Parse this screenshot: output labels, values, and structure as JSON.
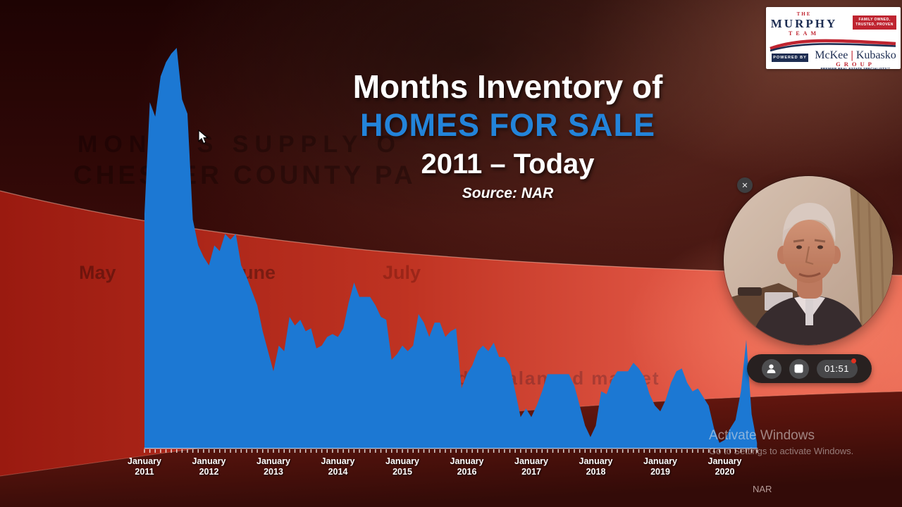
{
  "slide": {
    "title_line1": "Months Inventory of",
    "title_line2": "HOMES FOR SALE",
    "title_line3": "2011 – Today",
    "source_label": "Source: NAR",
    "footer_source": "NAR"
  },
  "ghost": {
    "headline_line1": "MONTHS SUPPLY O",
    "headline_line2": "CHESTER COUNTY  PA",
    "month_may": "May",
    "month_june": "June",
    "month_july": "July",
    "note": "NOTE: ~ 6 Months is considered a balanced market"
  },
  "logo": {
    "the": "THE",
    "murphy": "MURPHY",
    "team": "TEAM",
    "badge_line1": "FAMILY OWNED,",
    "badge_line2": "TRUSTED, PROVEN",
    "powered_by": "POWERED BY",
    "name_first": "McKee",
    "name_divider": "|",
    "name_last": "Kubasko",
    "group": "GROUP",
    "tagline": "PREMIER REAL ESTATE SPECIALISTS™"
  },
  "webcam": {
    "close_label": "✕"
  },
  "recorder": {
    "timer": "01:51"
  },
  "watermark": {
    "line1": "Activate Windows",
    "line2": "Go to Settings to activate Windows."
  },
  "colors": {
    "chart_blue": "#1c78d3",
    "title_blue": "#2384da",
    "logo_navy": "#1d2d52",
    "logo_red": "#bf2430",
    "band_red": "#c23524"
  },
  "chart_data": {
    "type": "area",
    "title": "Months Inventory of Homes for Sale, 2011 – Today",
    "source": "NAR",
    "unit": "months of supply",
    "ylim": [
      0,
      14
    ],
    "grid": false,
    "legend": false,
    "x_tick_interval": "monthly",
    "series_start": "January 2011",
    "x_axis_labels": [
      {
        "line1": "January",
        "line2": "2011"
      },
      {
        "line1": "January",
        "line2": "2012"
      },
      {
        "line1": "January",
        "line2": "2013"
      },
      {
        "line1": "January",
        "line2": "2014"
      },
      {
        "line1": "January",
        "line2": "2015"
      },
      {
        "line1": "January",
        "line2": "2016"
      },
      {
        "line1": "January",
        "line2": "2017"
      },
      {
        "line1": "January",
        "line2": "2018"
      },
      {
        "line1": "January",
        "line2": "2019"
      },
      {
        "line1": "January",
        "line2": "2020"
      }
    ],
    "values": [
      8.2,
      12.1,
      11.6,
      13.0,
      13.5,
      13.8,
      14.0,
      12.2,
      11.7,
      8.0,
      7.1,
      6.7,
      6.4,
      7.1,
      6.9,
      7.5,
      7.3,
      7.5,
      6.4,
      6.0,
      5.5,
      5.0,
      4.1,
      3.4,
      2.7,
      3.6,
      3.4,
      4.6,
      4.3,
      4.5,
      4.1,
      4.2,
      3.5,
      3.6,
      3.9,
      4.0,
      3.9,
      4.2,
      5.1,
      5.8,
      5.3,
      5.3,
      5.3,
      5.0,
      4.6,
      4.5,
      3.1,
      3.3,
      3.6,
      3.4,
      3.6,
      4.7,
      4.4,
      3.9,
      4.4,
      4.4,
      3.9,
      4.1,
      4.2,
      2.1,
      2.6,
      2.9,
      3.4,
      3.6,
      3.4,
      3.7,
      3.2,
      3.2,
      2.9,
      2.0,
      1.1,
      1.4,
      1.1,
      1.5,
      2.0,
      2.6,
      2.6,
      2.6,
      2.6,
      2.6,
      2.2,
      1.5,
      0.8,
      0.4,
      0.8,
      2.0,
      1.9,
      2.4,
      2.7,
      2.7,
      2.7,
      3.0,
      2.8,
      2.5,
      1.9,
      1.5,
      1.3,
      1.7,
      2.3,
      2.7,
      2.8,
      2.3,
      2.0,
      2.1,
      1.8,
      1.5,
      0.7,
      0.2,
      0.3,
      0.7,
      1.0,
      2.0,
      3.8,
      1.2,
      0.2
    ]
  }
}
